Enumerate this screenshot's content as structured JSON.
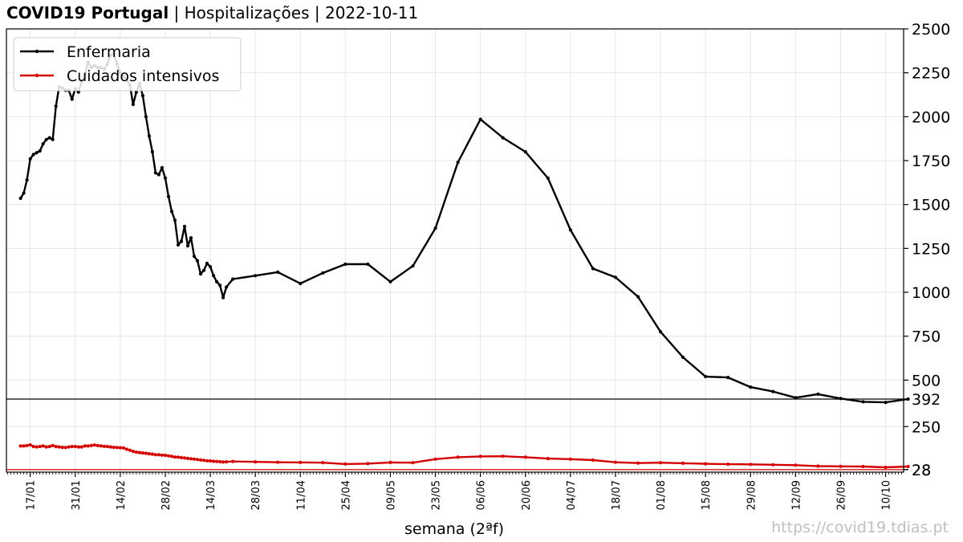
{
  "header": {
    "title_bold": "COVID19 Portugal",
    "title_rest": " | Hospitalizações | 2022-10-11"
  },
  "credit": "https://covid19.tdias.pt",
  "chart_data": {
    "type": "line",
    "xlabel": "semana (2ªf)",
    "x_ticks": [
      "17/01",
      "31/01",
      "14/02",
      "28/02",
      "14/03",
      "28/03",
      "11/04",
      "25/04",
      "09/05",
      "23/05",
      "06/06",
      "20/06",
      "04/07",
      "18/07",
      "01/08",
      "15/08",
      "29/08",
      "12/09",
      "26/09",
      "10/10"
    ],
    "x_range_days": [
      -7.4,
      271.6
    ],
    "x_tick_step_days": 14,
    "y_top_ticks": [
      500,
      750,
      1000,
      1250,
      1500,
      1750,
      2000,
      2250,
      2500
    ],
    "y_top_range": [
      392,
      2500
    ],
    "y_bottom_ticks": [
      28,
      250
    ],
    "y_bottom_range": [
      15,
      340
    ],
    "reference_values": [
      392,
      28
    ],
    "legend": {
      "placement": "upper-left",
      "entries": [
        "Enfermaria",
        "Cuidados intensivos"
      ]
    },
    "colors": {
      "enfermaria": "#000000",
      "intensivos": "#d40000",
      "grid": "#e6e6e6",
      "reference": "#000000"
    },
    "series": [
      {
        "name": "Enfermaria",
        "color": "#000000",
        "points": [
          [
            -3,
            1535
          ],
          [
            -2,
            1565
          ],
          [
            -1,
            1640
          ],
          [
            0,
            1760
          ],
          [
            1,
            1785
          ],
          [
            2,
            1795
          ],
          [
            3,
            1805
          ],
          [
            4,
            1845
          ],
          [
            5,
            1870
          ],
          [
            6,
            1880
          ],
          [
            7,
            1870
          ],
          [
            8,
            2060
          ],
          [
            9,
            2170
          ],
          [
            10,
            2165
          ],
          [
            11,
            2150
          ],
          [
            12,
            2150
          ],
          [
            13,
            2100
          ],
          [
            14,
            2160
          ],
          [
            15,
            2140
          ],
          [
            16,
            2200
          ],
          [
            17,
            2240
          ],
          [
            18,
            2310
          ],
          [
            19,
            2280
          ],
          [
            20,
            2290
          ],
          [
            21,
            2280
          ],
          [
            22,
            2280
          ],
          [
            23,
            2270
          ],
          [
            24,
            2300
          ],
          [
            25,
            2350
          ],
          [
            26,
            2360
          ],
          [
            27,
            2300
          ],
          [
            28,
            2250
          ],
          [
            29,
            2230
          ],
          [
            30,
            2210
          ],
          [
            31,
            2180
          ],
          [
            32,
            2070
          ],
          [
            33,
            2140
          ],
          [
            34,
            2190
          ],
          [
            35,
            2120
          ],
          [
            36,
            2000
          ],
          [
            37,
            1890
          ],
          [
            38,
            1800
          ],
          [
            39,
            1680
          ],
          [
            40,
            1670
          ],
          [
            41,
            1710
          ],
          [
            42,
            1650
          ],
          [
            43,
            1545
          ],
          [
            44,
            1460
          ],
          [
            45,
            1410
          ],
          [
            46,
            1270
          ],
          [
            47,
            1290
          ],
          [
            48,
            1375
          ],
          [
            49,
            1265
          ],
          [
            50,
            1310
          ],
          [
            51,
            1205
          ],
          [
            52,
            1180
          ],
          [
            53,
            1105
          ],
          [
            54,
            1125
          ],
          [
            55,
            1165
          ],
          [
            56,
            1145
          ],
          [
            57,
            1095
          ],
          [
            58,
            1060
          ],
          [
            59,
            1040
          ],
          [
            60,
            970
          ],
          [
            61,
            1030
          ],
          [
            63,
            1075
          ],
          [
            70,
            1095
          ],
          [
            77,
            1115
          ],
          [
            84,
            1050
          ],
          [
            91,
            1110
          ],
          [
            98,
            1160
          ],
          [
            105,
            1160
          ],
          [
            112,
            1060
          ],
          [
            119,
            1150
          ],
          [
            126,
            1365
          ],
          [
            133,
            1740
          ],
          [
            140,
            1985
          ],
          [
            147,
            1880
          ],
          [
            154,
            1800
          ],
          [
            161,
            1650
          ],
          [
            168,
            1355
          ],
          [
            175,
            1135
          ],
          [
            182,
            1085
          ],
          [
            189,
            975
          ],
          [
            196,
            775
          ],
          [
            203,
            630
          ],
          [
            210,
            520
          ],
          [
            217,
            515
          ],
          [
            224,
            460
          ],
          [
            231,
            435
          ],
          [
            238,
            400
          ],
          [
            245,
            420
          ],
          [
            252,
            395
          ],
          [
            259,
            378
          ],
          [
            266,
            375
          ],
          [
            273,
            392
          ]
        ]
      },
      {
        "name": "Cuidados intensivos",
        "color": "#d40000",
        "points": [
          [
            -3,
            150
          ],
          [
            -2,
            150
          ],
          [
            -1,
            152
          ],
          [
            0,
            156
          ],
          [
            1,
            147
          ],
          [
            2,
            145
          ],
          [
            3,
            147
          ],
          [
            4,
            150
          ],
          [
            5,
            145
          ],
          [
            6,
            147
          ],
          [
            7,
            152
          ],
          [
            8,
            147
          ],
          [
            9,
            145
          ],
          [
            10,
            143
          ],
          [
            11,
            142
          ],
          [
            12,
            145
          ],
          [
            13,
            147
          ],
          [
            14,
            147
          ],
          [
            15,
            145
          ],
          [
            16,
            145
          ],
          [
            17,
            150
          ],
          [
            18,
            150
          ],
          [
            19,
            152
          ],
          [
            20,
            155
          ],
          [
            21,
            152
          ],
          [
            22,
            150
          ],
          [
            23,
            148
          ],
          [
            24,
            147
          ],
          [
            25,
            145
          ],
          [
            26,
            143
          ],
          [
            27,
            142
          ],
          [
            28,
            141
          ],
          [
            29,
            140
          ],
          [
            30,
            133
          ],
          [
            31,
            128
          ],
          [
            32,
            122
          ],
          [
            33,
            118
          ],
          [
            34,
            116
          ],
          [
            35,
            114
          ],
          [
            36,
            112
          ],
          [
            37,
            110
          ],
          [
            38,
            108
          ],
          [
            39,
            105
          ],
          [
            40,
            105
          ],
          [
            41,
            103
          ],
          [
            42,
            102
          ],
          [
            43,
            99
          ],
          [
            44,
            96
          ],
          [
            45,
            93
          ],
          [
            46,
            92
          ],
          [
            47,
            90
          ],
          [
            48,
            88
          ],
          [
            49,
            86
          ],
          [
            50,
            84
          ],
          [
            51,
            82
          ],
          [
            52,
            80
          ],
          [
            53,
            78
          ],
          [
            54,
            76
          ],
          [
            55,
            74
          ],
          [
            56,
            73
          ],
          [
            57,
            71
          ],
          [
            58,
            70
          ],
          [
            59,
            69
          ],
          [
            60,
            67
          ],
          [
            61,
            68
          ],
          [
            63,
            70
          ],
          [
            70,
            68
          ],
          [
            77,
            66
          ],
          [
            84,
            65
          ],
          [
            91,
            64
          ],
          [
            98,
            57
          ],
          [
            105,
            59
          ],
          [
            112,
            65
          ],
          [
            119,
            64
          ],
          [
            126,
            82
          ],
          [
            133,
            92
          ],
          [
            140,
            96
          ],
          [
            147,
            97
          ],
          [
            154,
            92
          ],
          [
            161,
            85
          ],
          [
            168,
            82
          ],
          [
            175,
            77
          ],
          [
            182,
            66
          ],
          [
            189,
            62
          ],
          [
            196,
            64
          ],
          [
            203,
            61
          ],
          [
            210,
            58
          ],
          [
            217,
            56
          ],
          [
            224,
            55
          ],
          [
            231,
            53
          ],
          [
            238,
            51
          ],
          [
            245,
            46
          ],
          [
            252,
            45
          ],
          [
            259,
            44
          ],
          [
            266,
            40
          ],
          [
            273,
            44
          ]
        ]
      }
    ]
  }
}
